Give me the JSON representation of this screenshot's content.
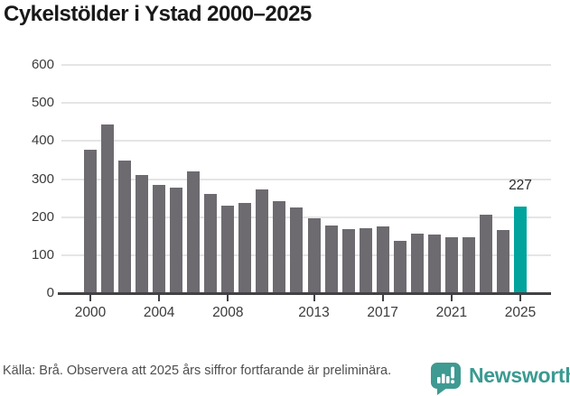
{
  "title": "Cykelstölder i Ystad 2000–2025",
  "chart_data": {
    "type": "bar",
    "title": "Cykelstölder i Ystad 2000–2025",
    "categories": [
      2000,
      2001,
      2002,
      2003,
      2004,
      2005,
      2006,
      2007,
      2008,
      2009,
      2010,
      2011,
      2012,
      2013,
      2014,
      2015,
      2016,
      2017,
      2018,
      2019,
      2020,
      2021,
      2022,
      2023,
      2024,
      2025
    ],
    "values": [
      378,
      444,
      348,
      311,
      285,
      277,
      319,
      262,
      229,
      236,
      272,
      241,
      226,
      196,
      178,
      168,
      170,
      175,
      138,
      157,
      153,
      146,
      146,
      207,
      166,
      227
    ],
    "ylim": [
      0,
      600
    ],
    "yticks": [
      0,
      100,
      200,
      300,
      400,
      500,
      600
    ],
    "xtick_years": [
      2000,
      2004,
      2008,
      2013,
      2017,
      2021,
      2025
    ],
    "grid": true,
    "legend": "none",
    "bar_color": "#6e6b70",
    "highlight_index": 25,
    "highlight_color": "#00a49c",
    "highlight_label": "227"
  },
  "footer": {
    "source_text": "Källa: Brå. Observera att 2025 års siffror fortfarande är preliminära."
  },
  "branding": {
    "name": "Newsworthy",
    "color": "#3a9a91",
    "icon": "newsworthy-speech-bubble-chart-icon"
  }
}
